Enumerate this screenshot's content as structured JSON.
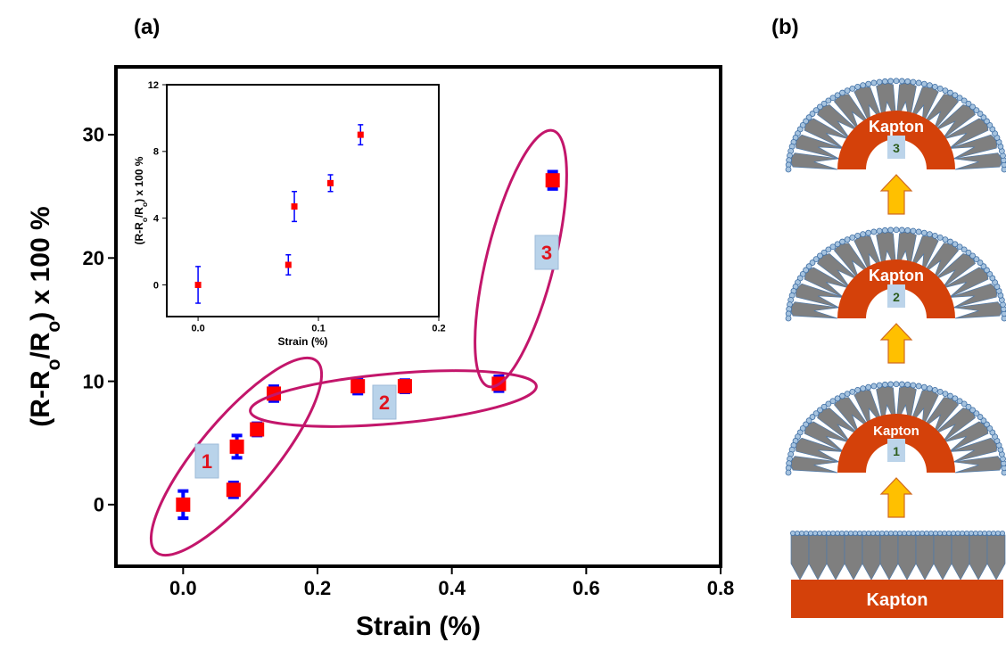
{
  "panel_labels": {
    "a": "(a)",
    "b": "(b)"
  },
  "chart_data": [
    {
      "type": "scatter",
      "x_label": "Strain (%)",
      "y_label": [
        "(R-R",
        "o",
        "/R",
        "o",
        ") x 100 %"
      ],
      "x": [
        0.0,
        0.075,
        0.08,
        0.11,
        0.135,
        0.26,
        0.33,
        0.47,
        0.55
      ],
      "series": [
        {
          "color": "#ff0000",
          "error_color": "#0000ff",
          "values": [
            0,
            1.2,
            4.7,
            6.1,
            9.0,
            9.6,
            9.6,
            9.8,
            26.3
          ],
          "errors": [
            1.1,
            0.6,
            0.9,
            0.5,
            0.6,
            0.6,
            0.5,
            0.6,
            0.7
          ]
        }
      ],
      "xlim": [
        -0.1,
        0.8
      ],
      "ylim": [
        -5,
        35.5
      ],
      "xticks": [
        {
          "value": 0,
          "label": "0.0"
        },
        {
          "value": 0.2,
          "label": "0.2"
        },
        {
          "value": 0.4,
          "label": "0.4"
        },
        {
          "value": 0.6,
          "label": "0.6"
        },
        {
          "value": 0.8,
          "label": "0.8"
        }
      ],
      "yticks": [
        0,
        10,
        20,
        30
      ],
      "annotations": [
        "1",
        "2",
        "3"
      ]
    },
    {
      "type": "scatter",
      "x_label": "Strain (%)",
      "y_label": [
        "(R-R",
        "o",
        "/R",
        "o",
        ") x 100 %"
      ],
      "x": [
        0.0,
        0.075,
        0.08,
        0.11,
        0.135
      ],
      "series": [
        {
          "color": "#ff0000",
          "error_color": "#0000ff",
          "values": [
            0,
            1.2,
            4.7,
            6.1,
            9.0
          ],
          "errors": [
            1.1,
            0.6,
            0.9,
            0.5,
            0.6
          ]
        }
      ],
      "xlim": [
        -0.026,
        0.2
      ],
      "ylim": [
        -1.9,
        12
      ],
      "xticks": [
        {
          "value": 0,
          "label": "0.0"
        },
        {
          "value": 0.1,
          "label": "0.1"
        },
        {
          "value": 0.2,
          "label": "0.2"
        }
      ],
      "yticks": [
        0,
        4,
        8,
        12
      ]
    }
  ],
  "diagram": {
    "stages": [
      {
        "material": "Kapton",
        "number": "3"
      },
      {
        "material": "Kapton",
        "number": "2"
      },
      {
        "material": "Kapton",
        "number": "1"
      }
    ],
    "base": {
      "material": "Kapton"
    }
  }
}
